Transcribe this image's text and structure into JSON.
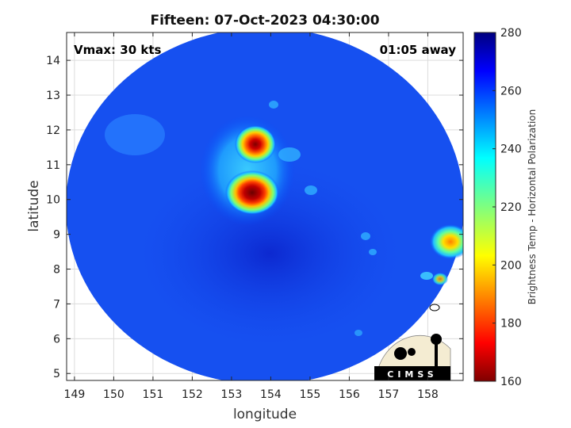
{
  "chart_data": {
    "type": "heatmap",
    "title": "Fifteen: 07-Oct-2023 04:30:00",
    "xlabel": "longitude",
    "ylabel": "latitude",
    "xlim": [
      148.8,
      158.9
    ],
    "ylim": [
      4.8,
      14.8
    ],
    "x_ticks": [
      149,
      150,
      151,
      152,
      153,
      154,
      155,
      156,
      157,
      158
    ],
    "y_ticks": [
      5,
      6,
      7,
      8,
      9,
      10,
      11,
      12,
      13,
      14
    ],
    "grid": true,
    "annotations": {
      "vmax": "Vmax: 30 kts",
      "time_offset": "01:05 away"
    },
    "colorbar": {
      "label": "Brightness Temp - Horizontal Polarization",
      "range": [
        160,
        280
      ],
      "ticks": [
        160,
        180,
        200,
        220,
        240,
        260,
        280
      ],
      "colormap": "jet"
    },
    "swath": {
      "shape": "circular",
      "center": [
        153.8,
        9.7
      ],
      "edge_value_K": 262
    },
    "features": [
      {
        "name": "convective core north",
        "lon": 153.7,
        "lat": 11.7,
        "min_tb_K": 170
      },
      {
        "name": "convective core south",
        "lon": 153.7,
        "lat": 10.2,
        "min_tb_K": 165
      },
      {
        "name": "rainband east",
        "lon": 158.6,
        "lat": 8.8,
        "min_tb_K": 195
      }
    ],
    "logo": "CIMSS"
  }
}
